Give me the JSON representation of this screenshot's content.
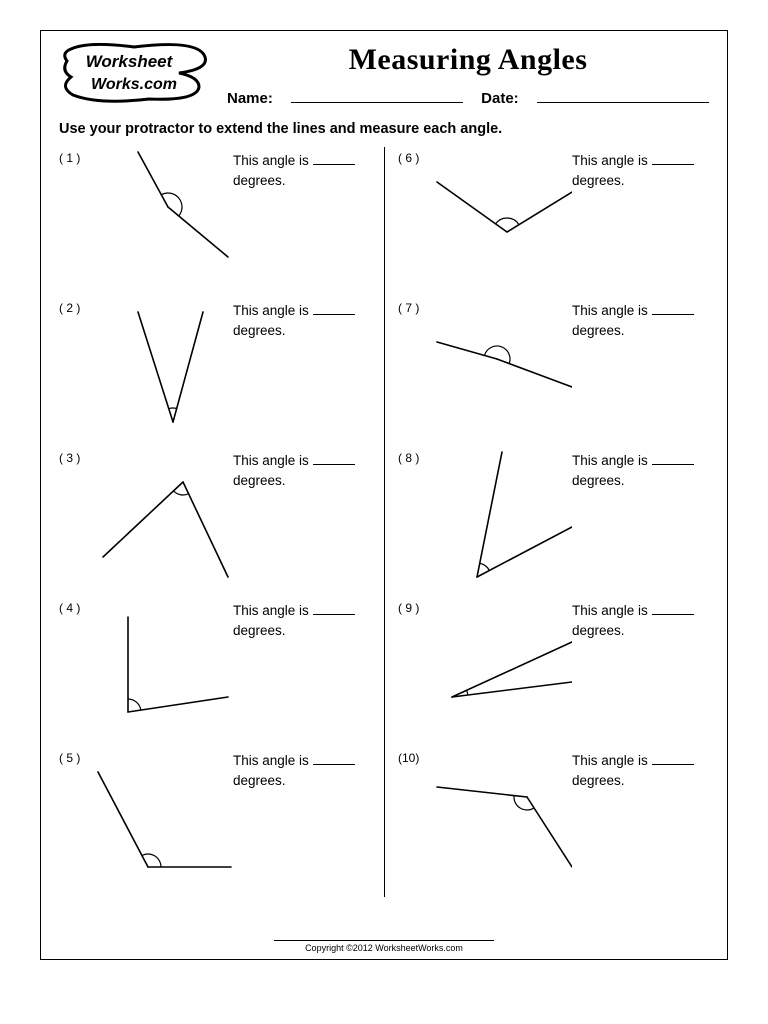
{
  "logo_text_top": "Worksheet",
  "logo_text_bottom": "Works.com",
  "title": "Measuring Angles",
  "name_label": "Name:",
  "date_label": "Date:",
  "instruction": "Use your protractor to extend the lines and measure each angle.",
  "answer_prefix": "This angle is",
  "answer_suffix": "degrees.",
  "footer": "Copyright ©2012 WorksheetWorks.com",
  "problems": [
    {
      "num": "( 1 )",
      "vertex": [
        75,
        60
      ],
      "ray1": [
        45,
        5
      ],
      "ray2": [
        135,
        110
      ],
      "arc_r": 14
    },
    {
      "num": "( 2 )",
      "vertex": [
        80,
        125
      ],
      "ray1": [
        45,
        15
      ],
      "ray2": [
        110,
        15
      ],
      "arc_r": 14
    },
    {
      "num": "( 3 )",
      "vertex": [
        90,
        35
      ],
      "ray1": [
        10,
        110
      ],
      "ray2": [
        135,
        130
      ],
      "arc_r": 13
    },
    {
      "num": "( 4 )",
      "vertex": [
        35,
        115
      ],
      "ray1": [
        35,
        20
      ],
      "ray2": [
        135,
        100
      ],
      "arc_r": 13
    },
    {
      "num": "( 5 )",
      "vertex": [
        55,
        120
      ],
      "ray1": [
        5,
        25
      ],
      "ray2": [
        138,
        120
      ],
      "arc_r": 13
    },
    {
      "num": "( 6 )",
      "vertex": [
        75,
        85
      ],
      "ray1": [
        5,
        35
      ],
      "ray2": [
        140,
        45
      ],
      "arc_r": 14
    },
    {
      "num": "( 7 )",
      "vertex": [
        65,
        62
      ],
      "ray1": [
        5,
        45
      ],
      "ray2": [
        140,
        90
      ],
      "arc_r": 13,
      "large": 1
    },
    {
      "num": "( 8 )",
      "vertex": [
        45,
        130
      ],
      "ray1": [
        70,
        5
      ],
      "ray2": [
        140,
        80
      ],
      "arc_r": 14
    },
    {
      "num": "( 9 )",
      "vertex": [
        20,
        100
      ],
      "ray1": [
        140,
        45
      ],
      "ray2": [
        140,
        85
      ],
      "arc_r": 16
    },
    {
      "num": "(10)",
      "vertex": [
        95,
        50
      ],
      "ray1": [
        5,
        40
      ],
      "ray2": [
        140,
        120
      ],
      "arc_r": 13
    }
  ],
  "style": {
    "stroke": "#000000",
    "stroke_width": 1.6,
    "arc_width": 1.2,
    "background": "#ffffff"
  }
}
